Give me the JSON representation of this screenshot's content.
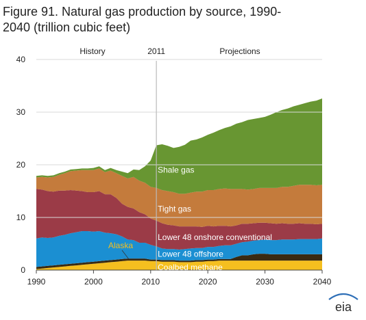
{
  "title": "Figure 91. Natural gas production by source, 1990-2040 (trillion cubic feet)",
  "logo_text": "eia",
  "colors": {
    "coalbed": "#f5bf1f",
    "alaska": "#3a2a12",
    "offshore": "#1b8fd2",
    "onshore": "#9b3b47",
    "tight": "#c47b3c",
    "shale": "#689632",
    "alaska_label": "#f5bf1f",
    "divider": "#bbbbbb",
    "logo_swoosh": "#2e6fb7"
  },
  "chart_data": {
    "type": "area",
    "stacked": true,
    "xlim": [
      1990,
      2040
    ],
    "ylim": [
      0,
      40
    ],
    "xticks": [
      1990,
      2000,
      2010,
      2020,
      2030,
      2040
    ],
    "yticks": [
      0,
      10,
      20,
      30,
      40
    ],
    "grid": "horizontal",
    "divider_year": 2011,
    "header_labels": {
      "history": "History",
      "divider": "2011",
      "projections": "Projections"
    },
    "x": [
      1990,
      1991,
      1992,
      1993,
      1994,
      1995,
      1996,
      1997,
      1998,
      1999,
      2000,
      2001,
      2002,
      2003,
      2004,
      2005,
      2006,
      2007,
      2008,
      2009,
      2010,
      2011,
      2012,
      2013,
      2014,
      2015,
      2016,
      2017,
      2018,
      2019,
      2020,
      2021,
      2022,
      2023,
      2024,
      2025,
      2026,
      2027,
      2028,
      2029,
      2030,
      2031,
      2032,
      2033,
      2034,
      2035,
      2036,
      2037,
      2038,
      2039,
      2040
    ],
    "series": [
      {
        "name": "Coalbed methane",
        "color_key": "coalbed",
        "values": [
          0.2,
          0.3,
          0.4,
          0.5,
          0.6,
          0.7,
          0.8,
          0.9,
          1.0,
          1.1,
          1.2,
          1.3,
          1.4,
          1.5,
          1.6,
          1.7,
          1.8,
          1.8,
          1.8,
          1.8,
          1.7,
          1.7,
          1.6,
          1.6,
          1.6,
          1.5,
          1.5,
          1.5,
          1.6,
          1.6,
          1.7,
          1.7,
          1.8,
          1.8,
          1.8,
          1.8,
          1.8,
          1.8,
          1.8,
          1.8,
          1.8,
          1.8,
          1.8,
          1.8,
          1.8,
          1.8,
          1.8,
          1.8,
          1.8,
          1.8,
          1.8
        ]
      },
      {
        "name": "Alaska",
        "color_key": "alaska",
        "values": [
          0.4,
          0.4,
          0.4,
          0.4,
          0.4,
          0.4,
          0.4,
          0.4,
          0.4,
          0.4,
          0.4,
          0.4,
          0.4,
          0.4,
          0.4,
          0.4,
          0.4,
          0.4,
          0.4,
          0.4,
          0.3,
          0.3,
          0.3,
          0.3,
          0.3,
          0.3,
          0.3,
          0.3,
          0.3,
          0.3,
          0.3,
          0.3,
          0.3,
          0.3,
          0.3,
          0.7,
          1.0,
          1.0,
          1.2,
          1.3,
          1.3,
          1.2,
          1.2,
          1.2,
          1.2,
          1.2,
          1.2,
          1.2,
          1.2,
          1.2,
          1.2
        ]
      },
      {
        "name": "Lower 48 offshore",
        "color_key": "offshore",
        "values": [
          5.4,
          5.5,
          5.3,
          5.3,
          5.5,
          5.6,
          5.8,
          5.9,
          6.0,
          5.9,
          5.7,
          5.7,
          5.3,
          5.1,
          4.8,
          4.3,
          3.6,
          3.5,
          3.0,
          3.0,
          2.8,
          2.5,
          2.2,
          2.1,
          2.1,
          2.1,
          2.2,
          2.3,
          2.3,
          2.3,
          2.4,
          2.4,
          2.5,
          2.6,
          2.6,
          2.5,
          2.5,
          2.6,
          2.6,
          2.6,
          2.7,
          2.7,
          2.7,
          2.8,
          2.8,
          2.8,
          2.9,
          2.9,
          2.9,
          2.9,
          3.0
        ]
      },
      {
        "name": "Lower 48 onshore conventional",
        "color_key": "onshore",
        "values": [
          9.4,
          9.1,
          8.9,
          8.7,
          8.6,
          8.4,
          8.2,
          7.9,
          7.6,
          7.4,
          7.5,
          7.6,
          7.3,
          7.4,
          6.9,
          6.2,
          6.2,
          6.0,
          5.8,
          5.4,
          5.0,
          4.9,
          4.8,
          4.6,
          4.5,
          4.4,
          4.3,
          4.2,
          4.1,
          4.0,
          4.0,
          3.9,
          3.8,
          3.7,
          3.6,
          3.5,
          3.5,
          3.4,
          3.3,
          3.3,
          3.2,
          3.2,
          3.1,
          3.1,
          3.0,
          3.0,
          3.0,
          2.9,
          2.9,
          2.8,
          2.8
        ]
      },
      {
        "name": "Tight gas",
        "color_key": "tight",
        "values": [
          2.2,
          2.4,
          2.6,
          2.8,
          3.0,
          3.3,
          3.6,
          3.8,
          4.0,
          4.2,
          4.2,
          4.3,
          4.2,
          4.5,
          4.7,
          5.3,
          5.4,
          6.0,
          6.0,
          6.0,
          6.0,
          6.2,
          6.3,
          6.4,
          6.3,
          6.2,
          6.2,
          6.4,
          6.6,
          6.7,
          6.8,
          6.9,
          7.0,
          7.1,
          7.1,
          6.9,
          6.6,
          6.5,
          6.5,
          6.6,
          6.6,
          6.7,
          6.8,
          6.9,
          7.0,
          7.2,
          7.3,
          7.4,
          7.4,
          7.4,
          7.4
        ]
      },
      {
        "name": "Shale gas",
        "color_key": "shale",
        "values": [
          0.3,
          0.3,
          0.3,
          0.3,
          0.3,
          0.3,
          0.3,
          0.3,
          0.3,
          0.3,
          0.4,
          0.4,
          0.4,
          0.5,
          0.6,
          0.8,
          1.0,
          1.4,
          2.0,
          3.1,
          5.0,
          8.1,
          8.7,
          8.6,
          8.4,
          8.9,
          9.3,
          9.9,
          9.9,
          10.3,
          10.5,
          10.9,
          11.2,
          11.5,
          11.9,
          12.4,
          12.7,
          13.2,
          13.3,
          13.3,
          13.5,
          13.9,
          14.4,
          14.6,
          14.9,
          15.1,
          15.2,
          15.5,
          15.8,
          16.1,
          16.4
        ]
      }
    ],
    "labels": [
      {
        "text": "Shale gas",
        "series": "Shale gas"
      },
      {
        "text": "Tight gas",
        "series": "Tight gas"
      },
      {
        "text": "Lower 48 onshore conventional",
        "series": "Lower 48 onshore conventional"
      },
      {
        "text": "Lower 48 offshore",
        "series": "Lower 48 offshore"
      },
      {
        "text": "Coalbed methane",
        "series": "Coalbed methane"
      },
      {
        "text": "Alaska",
        "series": "Alaska"
      }
    ]
  }
}
